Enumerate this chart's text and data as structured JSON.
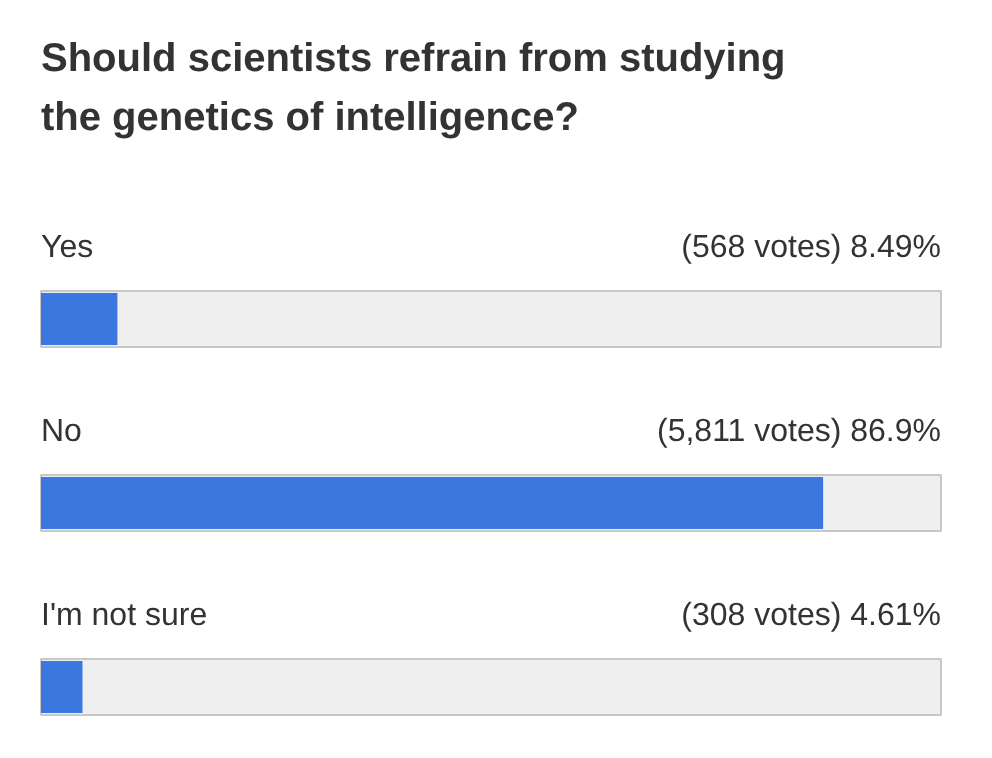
{
  "chart_data": {
    "type": "bar",
    "orientation": "horizontal",
    "title": "Should scientists refrain from studying the genetics of intelligence?",
    "categories": [
      "Yes",
      "No",
      "I'm not sure"
    ],
    "values": [
      8.49,
      86.9,
      4.61
    ],
    "value_labels": [
      "(568 votes) 8.49%",
      "(5,811 votes) 86.9%",
      "(308 votes) 4.61%"
    ],
    "color": "#3a78e0",
    "xlim": [
      0,
      100
    ],
    "grid": false
  }
}
